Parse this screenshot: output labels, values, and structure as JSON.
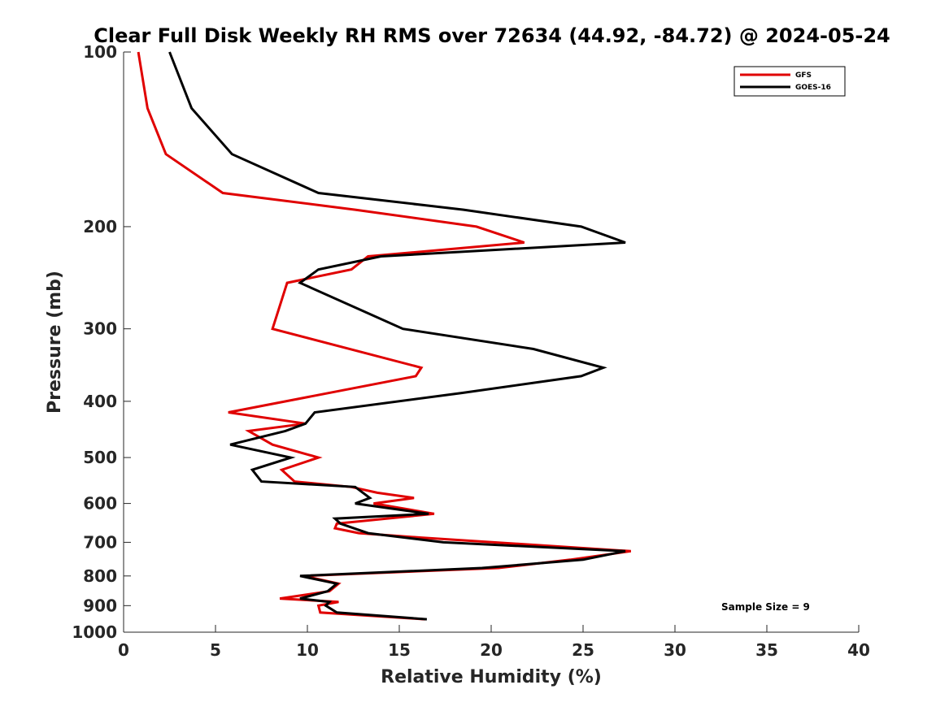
{
  "chart_data": {
    "type": "line",
    "title": "Clear Full Disk Weekly RH RMS over 72634 (44.92, -84.72) @ 2024-05-24",
    "xlabel": "Relative Humidity (%)",
    "ylabel": "Pressure (mb)",
    "xlim": [
      0,
      40
    ],
    "ylim": [
      100,
      1000
    ],
    "y_scale": "log",
    "x_ticks": [
      "0",
      "5",
      "10",
      "15",
      "20",
      "25",
      "30",
      "35",
      "40"
    ],
    "y_ticks": [
      "100",
      "200",
      "300",
      "400",
      "500",
      "600",
      "700",
      "800",
      "900",
      "1000"
    ],
    "legend": {
      "position": "top-right",
      "entries": [
        "GFS",
        "GOES-16"
      ]
    },
    "annotation": "Sample Size = 9",
    "series": [
      {
        "name": "GFS",
        "color": "#e00000",
        "points": [
          [
            0.8,
            100
          ],
          [
            1.3,
            125
          ],
          [
            2.3,
            150
          ],
          [
            5.4,
            175
          ],
          [
            12.6,
            187
          ],
          [
            19.2,
            200
          ],
          [
            21.8,
            213
          ],
          [
            13.3,
            225
          ],
          [
            12.4,
            237
          ],
          [
            8.9,
            250
          ],
          [
            8.1,
            300
          ],
          [
            16.2,
            350
          ],
          [
            15.9,
            362
          ],
          [
            5.7,
            418
          ],
          [
            9.9,
            437
          ],
          [
            6.8,
            450
          ],
          [
            8.1,
            475
          ],
          [
            10.6,
            500
          ],
          [
            8.6,
            525
          ],
          [
            9.3,
            550
          ],
          [
            12.4,
            562
          ],
          [
            13.8,
            575
          ],
          [
            15.8,
            587
          ],
          [
            13.6,
            600
          ],
          [
            16.9,
            625
          ],
          [
            11.6,
            650
          ],
          [
            11.5,
            662
          ],
          [
            12.8,
            675
          ],
          [
            16.2,
            687
          ],
          [
            27.6,
            725
          ],
          [
            24.3,
            750
          ],
          [
            20.4,
            775
          ],
          [
            9.8,
            800
          ],
          [
            11.7,
            825
          ],
          [
            11.2,
            850
          ],
          [
            8.5,
            875
          ],
          [
            11.7,
            887
          ],
          [
            10.6,
            900
          ],
          [
            10.7,
            925
          ],
          [
            16.4,
            950
          ]
        ]
      },
      {
        "name": "GOES-16",
        "color": "#000000",
        "points": [
          [
            2.5,
            100
          ],
          [
            3.7,
            125
          ],
          [
            5.9,
            150
          ],
          [
            10.6,
            175
          ],
          [
            18.5,
            187
          ],
          [
            24.9,
            200
          ],
          [
            27.3,
            213
          ],
          [
            14.0,
            225
          ],
          [
            10.6,
            237
          ],
          [
            9.6,
            250
          ],
          [
            15.2,
            300
          ],
          [
            22.3,
            325
          ],
          [
            26.1,
            350
          ],
          [
            24.9,
            362
          ],
          [
            18.4,
            387
          ],
          [
            10.4,
            418
          ],
          [
            9.9,
            437
          ],
          [
            8.8,
            450
          ],
          [
            5.8,
            475
          ],
          [
            9.1,
            500
          ],
          [
            7.0,
            525
          ],
          [
            7.5,
            550
          ],
          [
            12.6,
            562
          ],
          [
            13.4,
            587
          ],
          [
            12.6,
            600
          ],
          [
            16.6,
            625
          ],
          [
            11.5,
            637
          ],
          [
            11.8,
            650
          ],
          [
            13.3,
            675
          ],
          [
            17.4,
            700
          ],
          [
            27.3,
            725
          ],
          [
            25.0,
            750
          ],
          [
            19.5,
            775
          ],
          [
            9.6,
            800
          ],
          [
            11.6,
            825
          ],
          [
            11.1,
            850
          ],
          [
            9.6,
            875
          ],
          [
            11.2,
            887
          ],
          [
            11.0,
            900
          ],
          [
            11.6,
            925
          ],
          [
            16.5,
            950
          ]
        ]
      }
    ]
  }
}
